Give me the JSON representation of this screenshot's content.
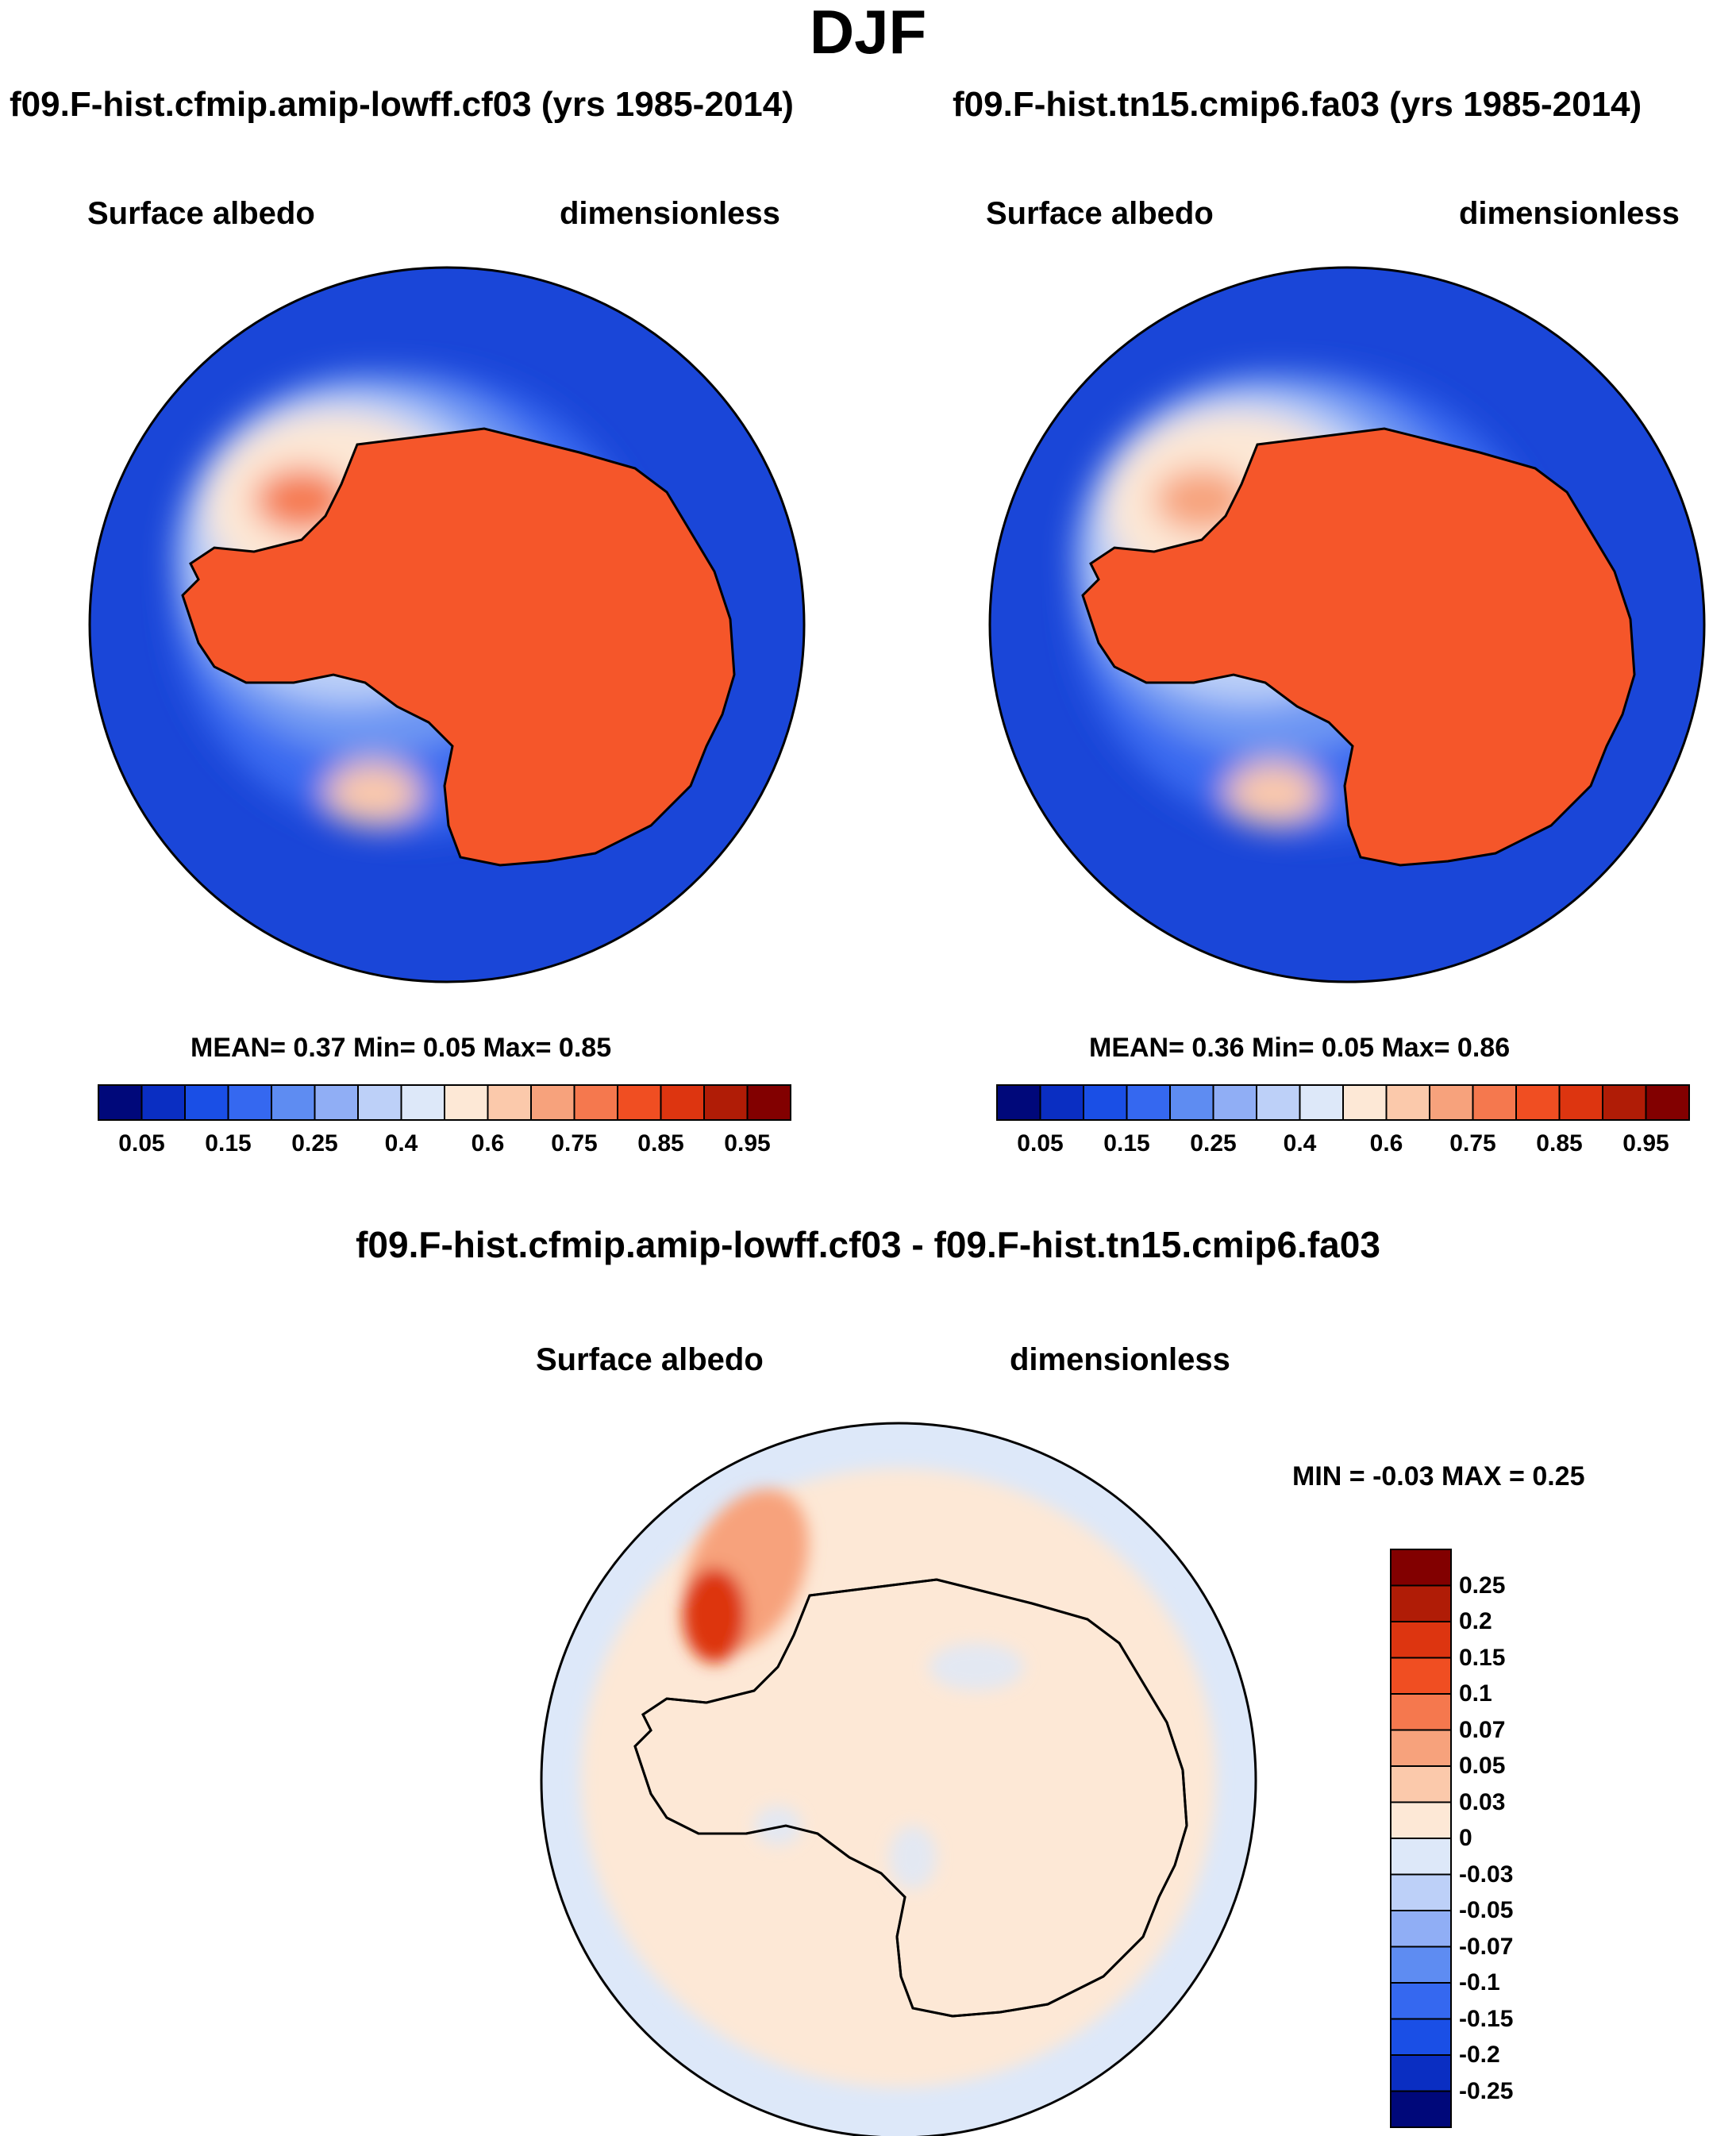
{
  "page": {
    "title": "DJF",
    "diff_title": "f09.F-hist.cfmip.amip-lowff.cf03 - f09.F-hist.tn15.cmip6.fa03"
  },
  "panels": [
    {
      "run": "f09.F-hist.cfmip.amip-lowff.cf03 (yrs 1985-2014)",
      "variable": "Surface albedo",
      "units": "dimensionless",
      "stats": "MEAN=   0.37  Min=    0.05  Max=    0.85"
    },
    {
      "run": "f09.F-hist.tn15.cmip6.fa03 (yrs 1985-2014)",
      "variable": "Surface albedo",
      "units": "dimensionless",
      "stats": "MEAN=   0.36  Min=    0.05  Max=    0.86"
    }
  ],
  "diff_panel": {
    "variable": "Surface albedo",
    "units": "dimensionless",
    "stats": "MIN =   -0.03 MAX =    0.25"
  },
  "colorbars": {
    "abs_levels": [
      "0.05",
      "0.15",
      "0.25",
      "0.4",
      "0.6",
      "0.75",
      "0.85",
      "0.95"
    ],
    "abs_colors": [
      "#00087a",
      "#0a2ec2",
      "#1a4fe6",
      "#3568f0",
      "#5e8cf2",
      "#90aef5",
      "#bdd0f8",
      "#dde8f9",
      "#fde8d6",
      "#fbc9ab",
      "#f7a27c",
      "#f5784e",
      "#f04e22",
      "#dd3510",
      "#b01c06",
      "#820000"
    ],
    "diff_levels": [
      "0.25",
      "0.2",
      "0.15",
      "0.1",
      "0.07",
      "0.05",
      "0.03",
      "0",
      "-0.03",
      "-0.05",
      "-0.07",
      "-0.1",
      "-0.15",
      "-0.2",
      "-0.25"
    ],
    "diff_colors": [
      "#820000",
      "#b01c06",
      "#dd3510",
      "#f04e22",
      "#f5784e",
      "#f7a27c",
      "#fbc9ab",
      "#fde8d6",
      "#dde8f9",
      "#bdd0f8",
      "#90aef5",
      "#5e8cf2",
      "#3568f0",
      "#1a4fe6",
      "#0a2ec2",
      "#00087a"
    ]
  },
  "colors": {
    "ocean_low": "#0a2ec2",
    "ice_high": "#f5562a",
    "diff_pos": "#fde8d6",
    "diff_neg": "#dde8f9"
  }
}
